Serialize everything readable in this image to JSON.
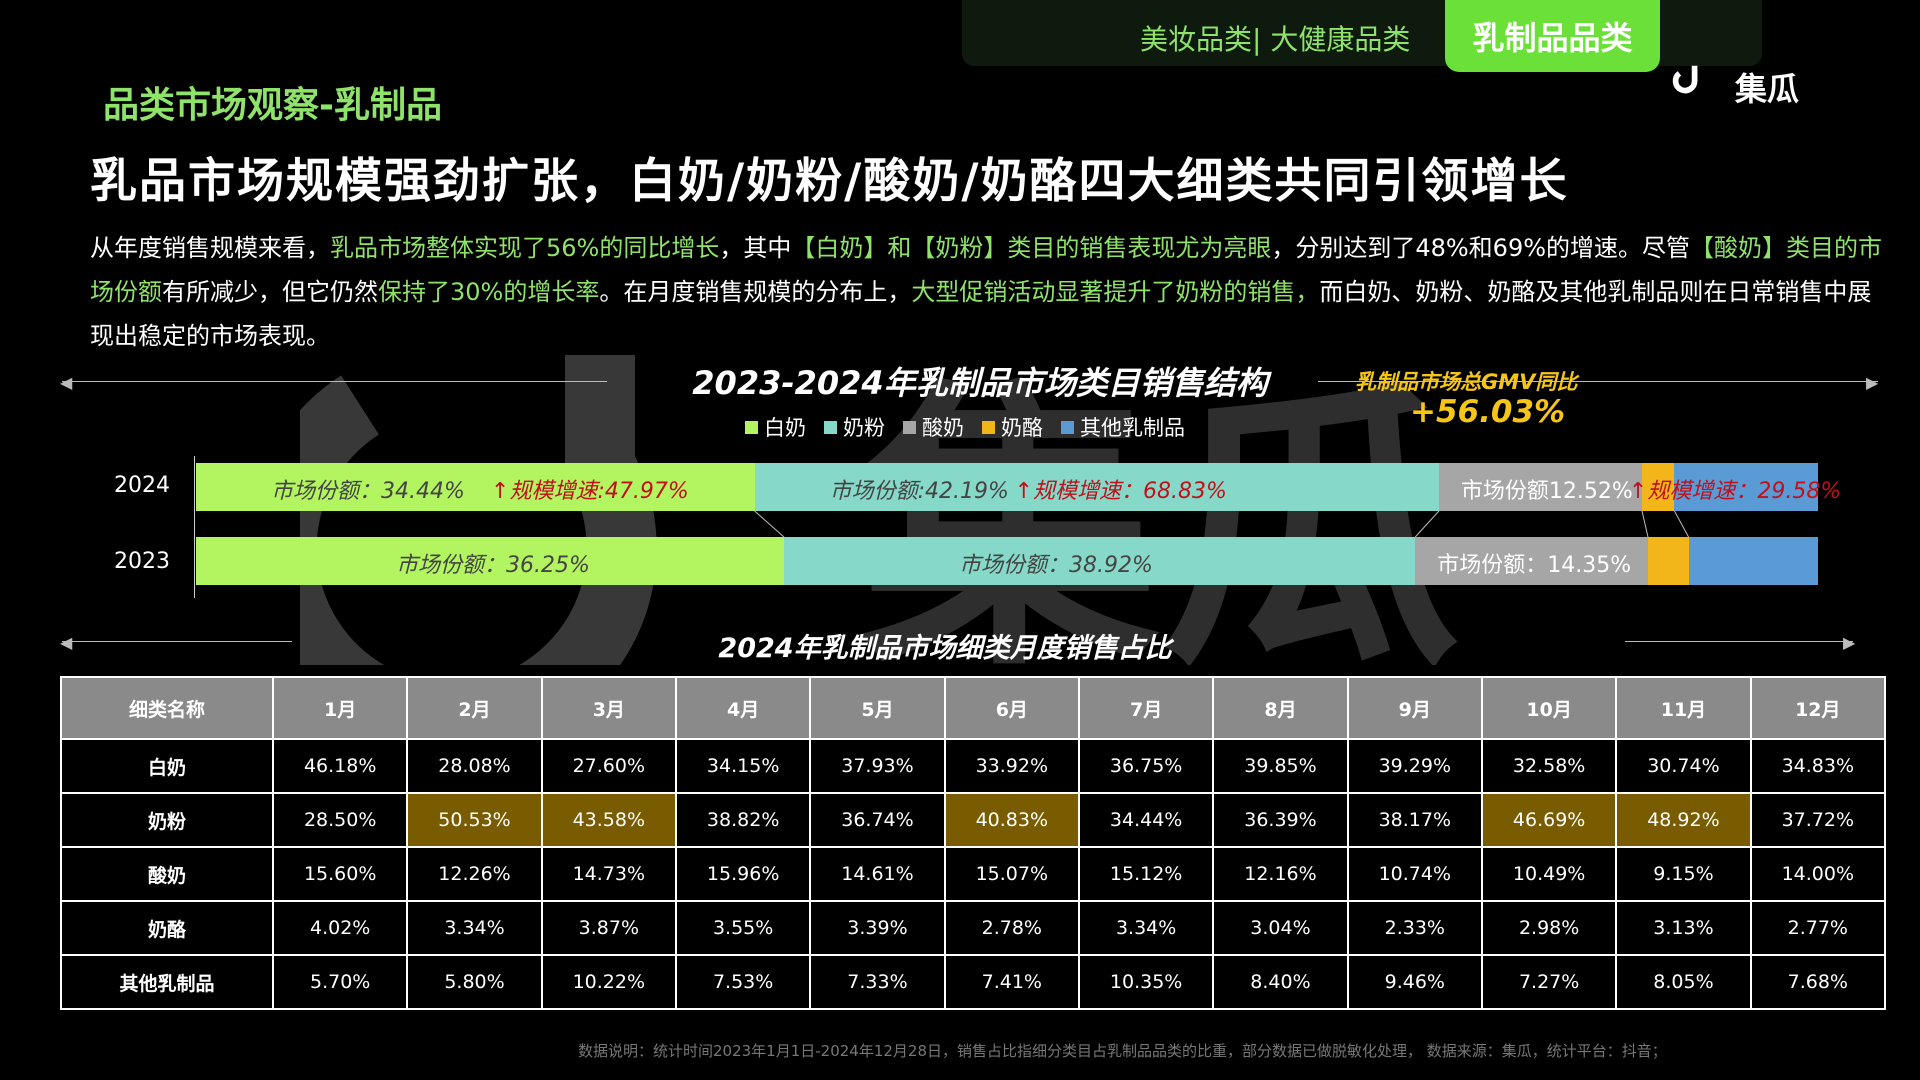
{
  "tabs": {
    "inactive": "美妆品类| 大健康品类",
    "active": "乳制品品类"
  },
  "logo": {
    "text": "集瓜"
  },
  "section_title": "品类市场观察-乳制品",
  "headline": "乳品市场规模强劲扩张，白奶/奶粉/酸奶/奶酪四大细类共同引领增长",
  "description": {
    "p1": "从年度销售规模来看，",
    "h1": "乳品市场整体实现了56%的同比增长",
    "p2": "，其中",
    "h2": "【白奶】和【奶粉】类目的销售表现尤为亮眼",
    "p3": "，分别达到了48%和69%的增速。尽管",
    "h3": "【酸奶】类目的市场份额",
    "p4": "有所减少，但它仍然",
    "h4": "保持了30%的增长率",
    "p5": "。在月度销售规模的分布上，",
    "h5": "大型促销活动显著提升了奶粉的销售，",
    "p6": "而白奶、奶粉、奶酪及其他乳制品则在日常销售中展现出稳定的市场表现。"
  },
  "colors": {
    "accent": "#8fe36a",
    "gold": "#f5c518",
    "highlight_cell": "#7a5c00"
  },
  "chart_data": [
    {
      "type": "bar",
      "stacked": "100%",
      "orientation": "horizontal",
      "title": "2023-2024年乳制品市场类目销售结构",
      "annotation": {
        "label": "乳制品市场总GMV同比",
        "value": "+56.03%"
      },
      "categories": [
        "2024",
        "2023"
      ],
      "legend_position": "top",
      "series": [
        {
          "name": "白奶",
          "color": "#b3f561",
          "values": [
            34.44,
            36.25
          ]
        },
        {
          "name": "奶粉",
          "color": "#86d9c8",
          "values": [
            42.19,
            38.92
          ]
        },
        {
          "name": "酸奶",
          "color": "#a6a6a6",
          "values": [
            12.52,
            14.35
          ]
        },
        {
          "name": "奶酪",
          "color": "#f2b51a",
          "values": [
            2.0,
            2.5
          ]
        },
        {
          "name": "其他乳制品",
          "color": "#5b9bd5",
          "values": [
            8.85,
            7.98
          ]
        }
      ],
      "labels": {
        "2024": [
          {
            "series": "白奶",
            "share": "市场份额：34.44%",
            "growth": "规模增速:47.97%"
          },
          {
            "series": "奶粉",
            "share": "市场份额:42.19%",
            "growth": "规模增速：68.83%"
          },
          {
            "series": "酸奶",
            "share": "市场份额12.52%",
            "growth": "规模增速：29.58%"
          }
        ],
        "2023": [
          {
            "series": "白奶",
            "share": "市场份额：36.25%"
          },
          {
            "series": "奶粉",
            "share": "市场份额：38.92%"
          },
          {
            "series": "酸奶",
            "share": "市场份额：14.35%"
          }
        ]
      }
    },
    {
      "type": "table",
      "title": "2024年乳制品市场细类月度销售占比",
      "header_first": "细类名称",
      "columns": [
        "1月",
        "2月",
        "3月",
        "4月",
        "5月",
        "6月",
        "7月",
        "8月",
        "9月",
        "10月",
        "11月",
        "12月"
      ],
      "rows": [
        {
          "name": "白奶",
          "values": [
            "46.18%",
            "28.08%",
            "27.60%",
            "34.15%",
            "37.93%",
            "33.92%",
            "36.75%",
            "39.85%",
            "39.29%",
            "32.58%",
            "30.74%",
            "34.83%"
          ],
          "highlight": []
        },
        {
          "name": "奶粉",
          "values": [
            "28.50%",
            "50.53%",
            "43.58%",
            "38.82%",
            "36.74%",
            "40.83%",
            "34.44%",
            "36.39%",
            "38.17%",
            "46.69%",
            "48.92%",
            "37.72%"
          ],
          "highlight": [
            1,
            2,
            5,
            9,
            10
          ]
        },
        {
          "name": "酸奶",
          "values": [
            "15.60%",
            "12.26%",
            "14.73%",
            "15.96%",
            "14.61%",
            "15.07%",
            "15.12%",
            "12.16%",
            "10.74%",
            "10.49%",
            "9.15%",
            "14.00%"
          ],
          "highlight": []
        },
        {
          "name": "奶酪",
          "values": [
            "4.02%",
            "3.34%",
            "3.87%",
            "3.55%",
            "3.39%",
            "2.78%",
            "3.34%",
            "3.04%",
            "2.33%",
            "2.98%",
            "3.13%",
            "2.77%"
          ],
          "highlight": []
        },
        {
          "name": "其他乳制品",
          "values": [
            "5.70%",
            "5.80%",
            "10.22%",
            "7.53%",
            "7.33%",
            "7.41%",
            "10.35%",
            "8.40%",
            "9.46%",
            "7.27%",
            "8.05%",
            "7.68%"
          ],
          "highlight": []
        }
      ]
    }
  ],
  "footnote": "数据说明：统计时间2023年1月1日-2024年12月28日，销售占比指细分类目占乳制品品类的比重，部分数据已做脱敏化处理， 数据来源：集瓜，统计平台：抖音；"
}
